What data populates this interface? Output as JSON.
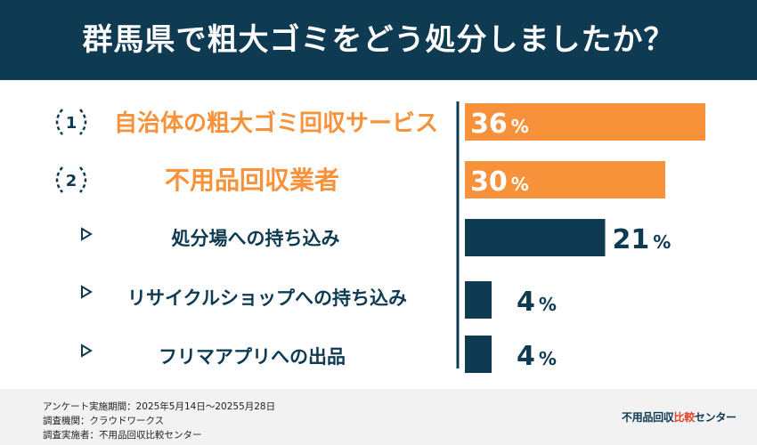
{
  "header": {
    "title": "群馬県で粗大ゴミをどう処分しましたか？"
  },
  "chart_data": {
    "type": "bar",
    "title": "群馬県で粗大ゴミをどう処分しましたか？",
    "categories": [
      "自治体の粗大ゴミ回収サービス",
      "不用品回収業者",
      "処分場への持ち込み",
      "リサイクルショップへの持ち込み",
      "フリマアプリへの出品"
    ],
    "values": [
      36,
      30,
      21,
      4,
      4
    ],
    "value_suffix": "%",
    "ranks": [
      "1",
      "2"
    ],
    "xlim": [
      0,
      36
    ],
    "colors": {
      "highlight": "#f7923a",
      "base": "#0e3a52",
      "axis": "#0e3a52"
    },
    "orientation": "horizontal",
    "grid": false,
    "legend": "none"
  },
  "footer": {
    "notes": [
      "アンケート実施期間：2025年5月14日〜20255月28日",
      "調査機関：クラウドワークス",
      "調査実施者：不用品回収比較センター"
    ],
    "brand_part1": "不用品回収",
    "brand_part2": "比較",
    "brand_part3": "センター"
  }
}
